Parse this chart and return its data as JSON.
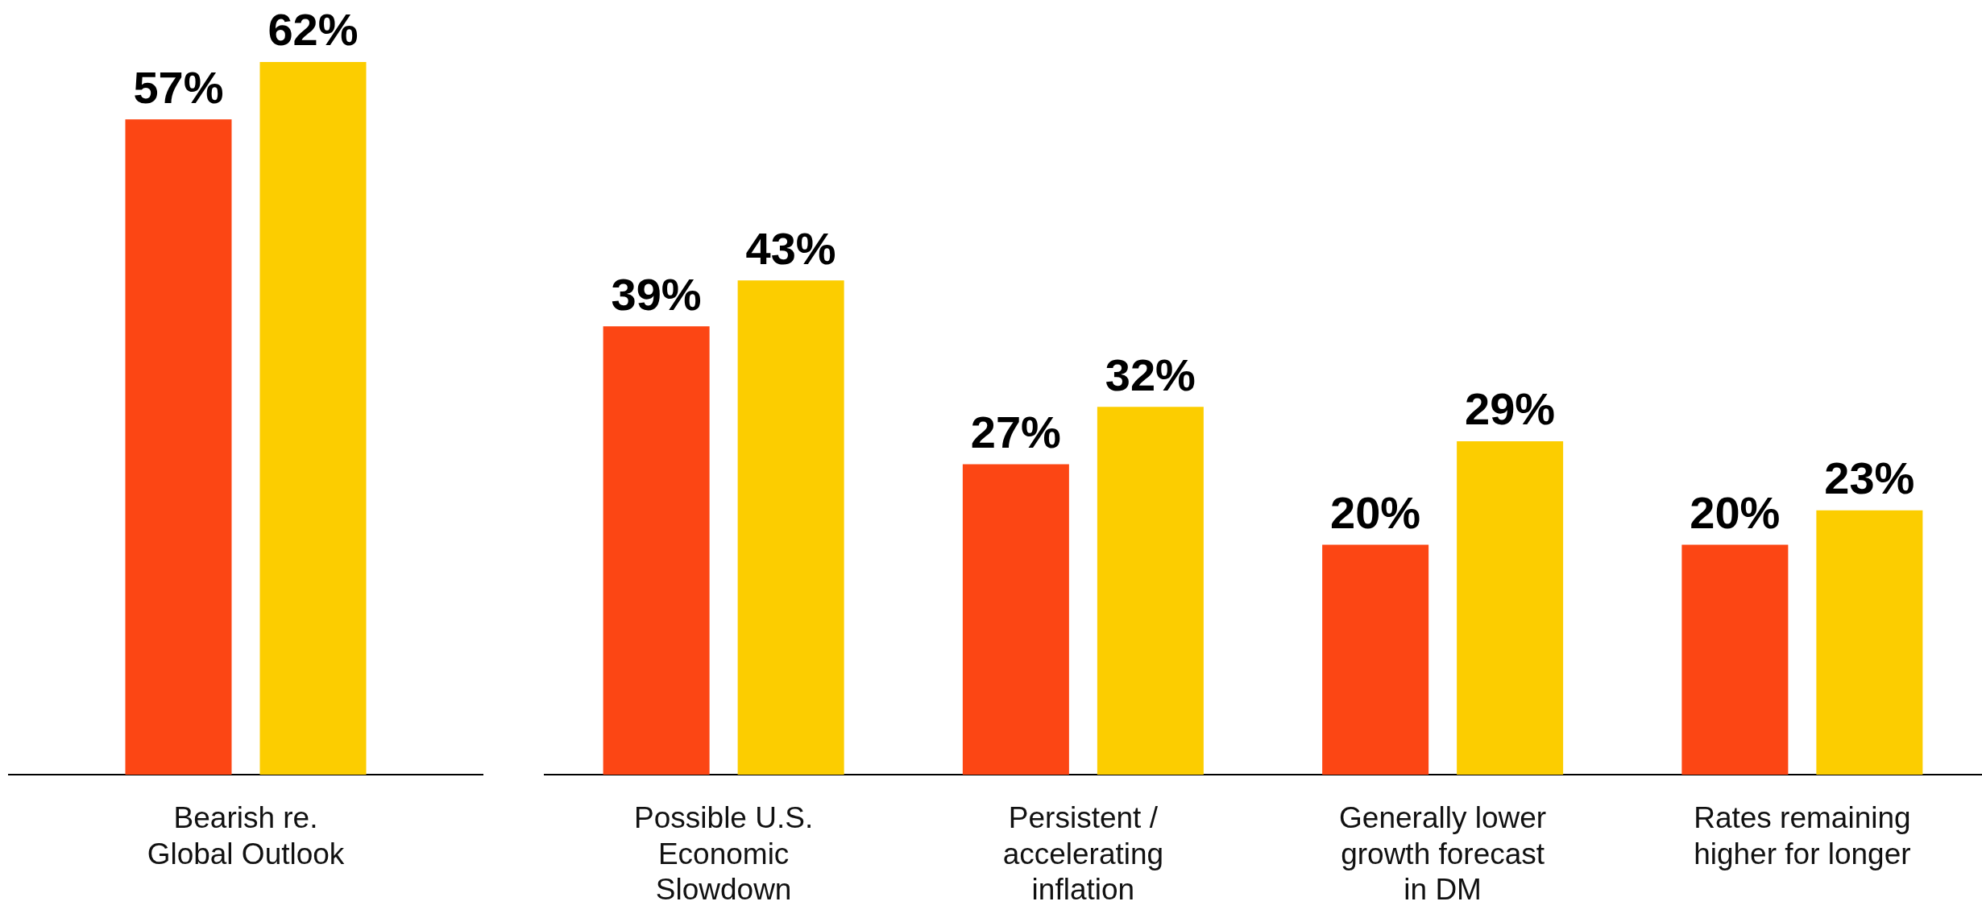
{
  "chart_data": [
    {
      "type": "bar",
      "categories": [
        "Bearish re.\nGlobal Outlook"
      ],
      "series": [
        {
          "color": "#fc4614",
          "values": [
            57
          ],
          "value_labels": [
            "57%"
          ]
        },
        {
          "color": "#fccd00",
          "values": [
            62
          ],
          "value_labels": [
            "62%"
          ]
        }
      ],
      "grid": false,
      "legend": false,
      "tick_labels": "x"
    },
    {
      "type": "bar",
      "categories": [
        "Possible U.S.\nEconomic\nSlowdown",
        "Persistent /\naccelerating\ninflation",
        "Generally lower\ngrowth forecast\nin DM",
        "Rates remaining\nhigher for longer"
      ],
      "series": [
        {
          "color": "#fc4614",
          "values": [
            39,
            27,
            20,
            20
          ],
          "value_labels": [
            "39%",
            "27%",
            "20%",
            "20%"
          ]
        },
        {
          "color": "#fccd00",
          "values": [
            43,
            32,
            29,
            23
          ],
          "value_labels": [
            "43%",
            "32%",
            "29%",
            "23%"
          ]
        }
      ],
      "grid": false,
      "legend": false,
      "tick_labels": "x"
    }
  ]
}
